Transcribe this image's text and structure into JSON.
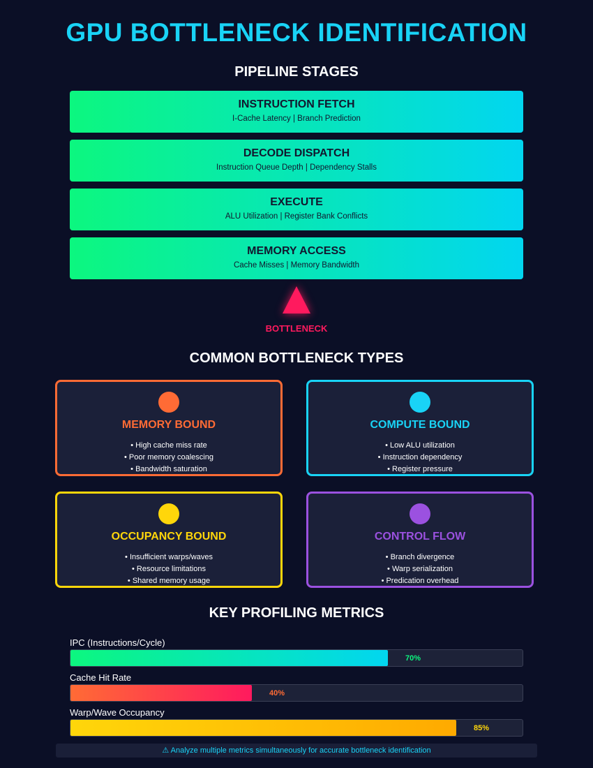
{
  "title": "GPU BOTTLENECK IDENTIFICATION",
  "pipeline": {
    "heading": "PIPELINE STAGES",
    "stages": [
      {
        "name": "INSTRUCTION FETCH",
        "detail": "I-Cache Latency | Branch Prediction"
      },
      {
        "name": "DECODE DISPATCH",
        "detail": "Instruction Queue Depth | Dependency Stalls"
      },
      {
        "name": "EXECUTE",
        "detail": "ALU Utilization | Register Bank Conflicts"
      },
      {
        "name": "MEMORY ACCESS",
        "detail": "Cache Misses | Memory Bandwidth"
      }
    ],
    "bottleneck_label": "BOTTLENECK",
    "bottleneck_color": "#ff1a5e"
  },
  "types": {
    "heading": "COMMON BOTTLENECK TYPES",
    "cards": [
      {
        "name": "MEMORY BOUND",
        "color": "#ff6b35",
        "items": [
          "• High cache miss rate",
          "• Poor memory coalescing",
          "• Bandwidth saturation"
        ]
      },
      {
        "name": "COMPUTE BOUND",
        "color": "#19d3f6",
        "items": [
          "• Low ALU utilization",
          "• Instruction dependency",
          "• Register pressure"
        ]
      },
      {
        "name": "OCCUPANCY BOUND",
        "color": "#ffd60a",
        "items": [
          "• Insufficient warps/waves",
          "• Resource limitations",
          "• Shared memory usage"
        ]
      },
      {
        "name": "CONTROL FLOW",
        "color": "#9b51e0",
        "items": [
          "• Branch divergence",
          "• Warp serialization",
          "• Predication overhead"
        ]
      }
    ]
  },
  "metrics": {
    "heading": "KEY PROFILING METRICS",
    "items": [
      {
        "label": "IPC (Instructions/Cycle)",
        "value": 0.7,
        "text": "70%",
        "color_start": "#0cf77f",
        "color_end": "#02d6f0",
        "text_color": "#0cf77f"
      },
      {
        "label": "Cache Hit Rate",
        "value": 0.4,
        "text": "40%",
        "color_start": "#ff6b35",
        "color_end": "#ff1a5e",
        "text_color": "#ff6b35"
      },
      {
        "label": "Warp/Wave Occupancy",
        "value": 0.85,
        "text": "85%",
        "color_start": "#ffd60a",
        "color_end": "#ffaa00",
        "text_color": "#ffd60a"
      }
    ]
  },
  "footer": "⚠ Analyze multiple metrics simultaneously for accurate bottleneck identification"
}
